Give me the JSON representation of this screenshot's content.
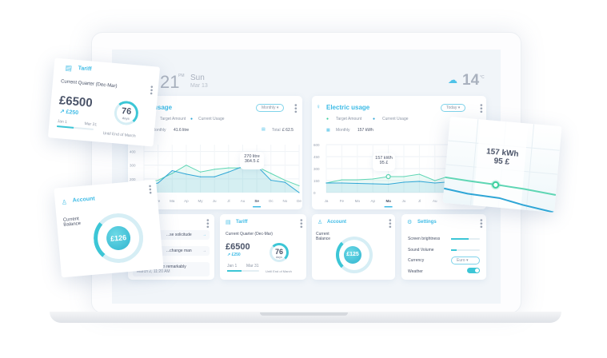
{
  "header": {
    "time": "21",
    "ampm": "PM",
    "day": "Sun",
    "date": "Mar 13",
    "weather_icon": "cloud-snow-icon",
    "temp": "14",
    "temp_unit": "°C"
  },
  "water": {
    "title": "usage",
    "period": "Monthly",
    "legend": [
      "Target Amount",
      "Current Usage"
    ],
    "summary_label": "Monthly",
    "summary_value": "41.6 litre",
    "total_label": "Total",
    "total_value": "£ 62.5",
    "tooltip": [
      "270 litre",
      "364.5 £"
    ]
  },
  "electric": {
    "title": "Electric usage",
    "period": "Today",
    "legend": [
      "Target Amount",
      "Current Usage"
    ],
    "summary_label": "Monthly",
    "summary_value": "157 kWh",
    "tooltip": [
      "157 kWh",
      "95 £"
    ]
  },
  "notifications": {
    "items": [
      {
        "text": "...se solicitude"
      },
      {
        "text": "...change man"
      },
      {
        "text": "...ndulgence ten remarkably",
        "time": "March 2, 11:20 AM"
      }
    ]
  },
  "tariff": {
    "title": "Tariff",
    "quarter": "Current Quarter (Dec-Mar)",
    "amount": "£6500",
    "delta": "↗ £250",
    "start": "Jan 1",
    "end": "Mar 31",
    "days": "76",
    "days_label": "days",
    "until": "Until End of March",
    "progress": 0.45
  },
  "account": {
    "title": "Account",
    "label": "Current Balance",
    "balance": "£125",
    "float_balance": "£126"
  },
  "settings": {
    "title": "Settings",
    "brightness_label": "Screen brightness",
    "brightness": 0.6,
    "volume_label": "Sound Volume",
    "volume": 0.2,
    "currency_label": "Currency",
    "currency": "Euro",
    "weather_label": "Weather",
    "weather_on": true
  },
  "colors": {
    "accent": "#3dbbe6",
    "target": "#5fd6b4",
    "current": "#2fa6d6"
  },
  "chart_data": [
    {
      "type": "line",
      "categories": [
        "Ja",
        "Fe",
        "Ma",
        "Ap",
        "My",
        "Ju",
        "Jl",
        "Au",
        "Se",
        "Oc",
        "No",
        "De"
      ],
      "highlight": "Se",
      "yticks": [
        400,
        300,
        200
      ],
      "ylim": [
        100,
        450
      ],
      "series": [
        {
          "name": "Target Amount",
          "values": [
            170,
            190,
            240,
            300,
            250,
            270,
            280,
            280,
            290,
            240,
            190,
            150
          ]
        },
        {
          "name": "Current Usage",
          "values": [
            150,
            170,
            260,
            235,
            215,
            215,
            250,
            290,
            295,
            190,
            175,
            100
          ]
        }
      ]
    },
    {
      "type": "line",
      "categories": [
        "Ja",
        "Fe",
        "Ma",
        "Ap",
        "Ma",
        "Ju",
        "Jl",
        "Au",
        "Se"
      ],
      "highlight": "Ma",
      "yticks": [
        600,
        450,
        300,
        150,
        0
      ],
      "ylim": [
        0,
        600
      ],
      "series": [
        {
          "name": "Target Amount",
          "values": [
            120,
            160,
            160,
            170,
            200,
            200,
            230,
            150,
            210
          ]
        },
        {
          "name": "Current Usage",
          "values": [
            120,
            120,
            115,
            110,
            105,
            130,
            140,
            120,
            135
          ]
        }
      ]
    }
  ]
}
